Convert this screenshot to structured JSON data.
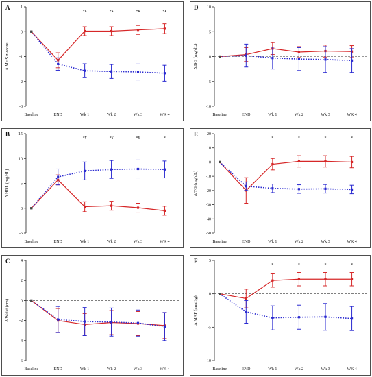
{
  "chart_data": [
    {
      "type": "line",
      "panel_label": "A",
      "ylabel": "Δ MetS z-score",
      "categories": [
        "Baseline",
        "END",
        "Wk 1",
        "Wk 2",
        "Wk 3",
        "WK 4"
      ],
      "ylim": [
        -3,
        1
      ],
      "yticks": [
        -3,
        -2,
        -1,
        0,
        1
      ],
      "reference_line": 0,
      "significance": [
        "",
        "",
        "*¥",
        "*¥",
        "*¥",
        "*¥"
      ],
      "series": [
        {
          "color": "#d62728",
          "style": "solid",
          "values": [
            0,
            -1.15,
            0.02,
            0.02,
            0.07,
            0.12
          ],
          "errors": [
            0,
            0.3,
            0.18,
            0.18,
            0.18,
            0.2
          ]
        },
        {
          "color": "#2a2ad0",
          "style": "dotted",
          "values": [
            0,
            -1.3,
            -1.57,
            -1.6,
            -1.62,
            -1.67
          ],
          "errors": [
            0,
            0.25,
            0.28,
            0.28,
            0.32,
            0.32
          ]
        }
      ]
    },
    {
      "type": "line",
      "panel_label": "D",
      "ylabel": "Δ BG (mg/dL)",
      "categories": [
        "Baseline",
        "END",
        "Wk 1",
        "Wk 2",
        "Wk 3",
        "WK 4"
      ],
      "ylim": [
        -10,
        10
      ],
      "yticks": [
        -10,
        -5,
        0,
        5,
        10
      ],
      "reference_line": 0,
      "significance": [
        "",
        "",
        "",
        "",
        "",
        ""
      ],
      "series": [
        {
          "color": "#d62728",
          "style": "solid",
          "values": [
            0,
            0.4,
            1.6,
            0.9,
            1.1,
            1.0
          ],
          "errors": [
            0,
            1.4,
            1.2,
            1.1,
            1.2,
            1.2
          ]
        },
        {
          "color": "#2a2ad0",
          "style": "dotted",
          "values": [
            0,
            0.2,
            -0.3,
            -0.5,
            -0.6,
            -0.8
          ],
          "errors": [
            0,
            2.3,
            2.2,
            2.3,
            2.6,
            2.4
          ]
        }
      ]
    },
    {
      "type": "line",
      "panel_label": "B",
      "ylabel": "Δ HDL (mg/dL)",
      "categories": [
        "Baseline",
        "END",
        "Wk 1",
        "Wk 2",
        "Wk 3",
        "WK 4"
      ],
      "ylim": [
        -5,
        15
      ],
      "yticks": [
        -5,
        0,
        5,
        10,
        15
      ],
      "reference_line": 0,
      "significance": [
        "",
        "",
        "*¥",
        "*¥",
        "*¥",
        "*"
      ],
      "series": [
        {
          "color": "#d62728",
          "style": "solid",
          "values": [
            0,
            5.7,
            0.3,
            0.5,
            0.1,
            -0.5
          ],
          "errors": [
            0,
            1.0,
            1.0,
            0.9,
            0.9,
            0.9
          ]
        },
        {
          "color": "#2a2ad0",
          "style": "dotted",
          "values": [
            0,
            6.3,
            7.5,
            7.8,
            7.9,
            7.8
          ],
          "errors": [
            0,
            1.6,
            1.8,
            1.8,
            1.8,
            1.7
          ]
        }
      ]
    },
    {
      "type": "line",
      "panel_label": "E",
      "ylabel": "Δ TG (mg/dL)",
      "categories": [
        "Baseline",
        "END",
        "Wk 1",
        "Wk 2",
        "Wk 3",
        "WK 4"
      ],
      "ylim": [
        -50,
        20
      ],
      "yticks": [
        -50,
        -40,
        -30,
        -20,
        -10,
        0,
        10,
        20
      ],
      "reference_line": 0,
      "significance": [
        "",
        "",
        "*",
        "*",
        "*",
        "*"
      ],
      "series": [
        {
          "color": "#d62728",
          "style": "solid",
          "values": [
            0,
            -20,
            -1.5,
            0.5,
            0.5,
            0
          ],
          "errors": [
            0,
            9,
            4,
            4,
            4,
            4
          ]
        },
        {
          "color": "#2a2ad0",
          "style": "dotted",
          "values": [
            0,
            -17,
            -18.5,
            -19,
            -18.8,
            -19.3
          ],
          "errors": [
            0,
            3,
            3,
            3,
            3,
            3
          ]
        }
      ]
    },
    {
      "type": "line",
      "panel_label": "C",
      "ylabel": "Δ Waist (cm)",
      "categories": [
        "Baseline",
        "END",
        "Wk 1",
        "Wk 2",
        "Wk 3",
        "WK 4"
      ],
      "ylim": [
        -6,
        4
      ],
      "yticks": [
        -6,
        -4,
        -2,
        0,
        2,
        4
      ],
      "reference_line": 0,
      "significance": [
        "",
        "",
        "",
        "",
        "",
        ""
      ],
      "series": [
        {
          "color": "#d62728",
          "style": "solid",
          "values": [
            0,
            -2.0,
            -2.4,
            -2.2,
            -2.3,
            -2.5
          ],
          "errors": [
            0,
            1.2,
            1.1,
            1.2,
            1.2,
            1.3
          ]
        },
        {
          "color": "#2a2ad0",
          "style": "dotted",
          "values": [
            0,
            -1.9,
            -2.1,
            -2.15,
            -2.25,
            -2.6
          ],
          "errors": [
            0,
            1.3,
            1.4,
            1.4,
            1.3,
            1.4
          ]
        }
      ]
    },
    {
      "type": "line",
      "panel_label": "F",
      "ylabel": "Δ MAP (mmHg)",
      "categories": [
        "Baseline",
        "END",
        "Wk 1",
        "Wk 2",
        "Wk 3",
        "WK 4"
      ],
      "ylim": [
        -10,
        5
      ],
      "yticks": [
        -10,
        -5,
        0,
        5
      ],
      "reference_line": 0,
      "significance": [
        "",
        "",
        "*",
        "*",
        "*",
        "*"
      ],
      "series": [
        {
          "color": "#d62728",
          "style": "solid",
          "values": [
            0,
            -0.7,
            2.0,
            2.2,
            2.2,
            2.2
          ],
          "errors": [
            0,
            1.4,
            1.0,
            1.0,
            1.0,
            1.0
          ]
        },
        {
          "color": "#2a2ad0",
          "style": "dotted",
          "values": [
            0,
            -2.7,
            -3.6,
            -3.5,
            -3.45,
            -3.7
          ],
          "errors": [
            0,
            1.7,
            1.8,
            1.8,
            2.0,
            1.8
          ]
        }
      ]
    }
  ]
}
